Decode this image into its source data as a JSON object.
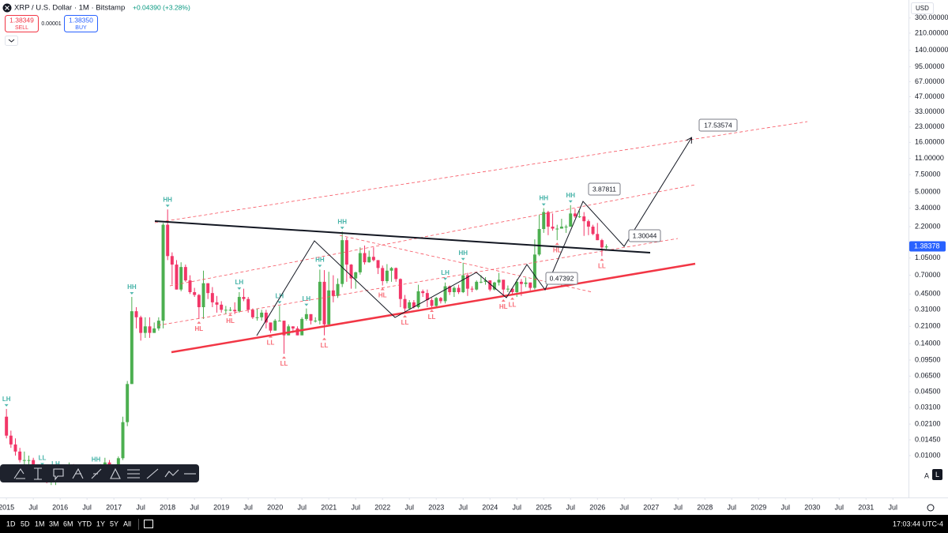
{
  "chart_data": {
    "type": "candlestick",
    "log": true,
    "grid": false,
    "up_color": "#4caf50",
    "down_color": "#f23668",
    "x": [
      "2015-01",
      "2015-02",
      "2015-03",
      "2015-04",
      "2015-05",
      "2015-06",
      "2015-07",
      "2015-08",
      "2015-09",
      "2015-10",
      "2015-11",
      "2015-12",
      "2016-01",
      "2016-02",
      "2016-03",
      "2016-04",
      "2016-05",
      "2016-06",
      "2016-07",
      "2016-08",
      "2016-09",
      "2016-10",
      "2016-11",
      "2016-12",
      "2017-01",
      "2017-02",
      "2017-03",
      "2017-04",
      "2017-05",
      "2017-06",
      "2017-07",
      "2017-08",
      "2017-09",
      "2017-10",
      "2017-11",
      "2017-12",
      "2018-01",
      "2018-02",
      "2018-03",
      "2018-04",
      "2018-05",
      "2018-06",
      "2018-07",
      "2018-08",
      "2018-09",
      "2018-10",
      "2018-11",
      "2018-12",
      "2019-01",
      "2019-02",
      "2019-03",
      "2019-04",
      "2019-05",
      "2019-06",
      "2019-07",
      "2019-08",
      "2019-09",
      "2019-10",
      "2019-11",
      "2019-12",
      "2020-01",
      "2020-02",
      "2020-03",
      "2020-04",
      "2020-05",
      "2020-06",
      "2020-07",
      "2020-08",
      "2020-09",
      "2020-10",
      "2020-11",
      "2020-12",
      "2021-01",
      "2021-02",
      "2021-03",
      "2021-04",
      "2021-05",
      "2021-06",
      "2021-07",
      "2021-08",
      "2021-09",
      "2021-10",
      "2021-11",
      "2021-12",
      "2022-01",
      "2022-02",
      "2022-03",
      "2022-04",
      "2022-05",
      "2022-06",
      "2022-07",
      "2022-08",
      "2022-09",
      "2022-10",
      "2022-11",
      "2022-12",
      "2023-01",
      "2023-02",
      "2023-03",
      "2023-04",
      "2023-05",
      "2023-06",
      "2023-07",
      "2023-08",
      "2023-09",
      "2023-10",
      "2023-11",
      "2023-12",
      "2024-01",
      "2024-02",
      "2024-03",
      "2024-04",
      "2024-05",
      "2024-06",
      "2024-07",
      "2024-08",
      "2024-09",
      "2024-10",
      "2024-11",
      "2024-12",
      "2025-01",
      "2025-02",
      "2025-03",
      "2025-04",
      "2025-05",
      "2025-06",
      "2025-07",
      "2025-08",
      "2025-09",
      "2025-10",
      "2025-11",
      "2025-12",
      "2026-01",
      "2026-02",
      "2026-03"
    ],
    "open": [
      0.025,
      0.016,
      0.013,
      0.011,
      0.009,
      0.009,
      0.009,
      0.0075,
      0.0065,
      0.0068,
      0.0055,
      0.0055,
      0.006,
      0.0065,
      0.0073,
      0.0079,
      0.0072,
      0.0065,
      0.0064,
      0.0065,
      0.0067,
      0.0068,
      0.0078,
      0.0085,
      0.0065,
      0.0065,
      0.0094,
      0.022,
      0.054,
      0.3,
      0.26,
      0.18,
      0.21,
      0.18,
      0.2,
      0.24,
      2.3,
      1.1,
      0.9,
      0.5,
      0.85,
      0.62,
      0.47,
      0.44,
      0.33,
      0.58,
      0.46,
      0.37,
      0.35,
      0.31,
      0.31,
      0.31,
      0.3,
      0.42,
      0.4,
      0.31,
      0.26,
      0.26,
      0.29,
      0.23,
      0.19,
      0.24,
      0.24,
      0.17,
      0.21,
      0.2,
      0.17,
      0.25,
      0.28,
      0.24,
      0.24,
      0.6,
      0.22,
      0.49,
      0.43,
      0.57,
      1.6,
      0.9,
      0.65,
      0.75,
      1.18,
      0.95,
      1.08,
      1.0,
      0.83,
      0.61,
      0.78,
      0.83,
      0.64,
      0.4,
      0.32,
      0.37,
      0.33,
      0.48,
      0.46,
      0.39,
      0.34,
      0.41,
      0.38,
      0.54,
      0.47,
      0.52,
      0.47,
      0.7,
      0.51,
      0.5,
      0.6,
      0.6,
      0.62,
      0.5,
      0.59,
      0.63,
      0.5,
      0.51,
      0.47,
      0.6,
      0.57,
      0.59,
      0.52,
      1.14,
      2.08,
      3.1,
      2.2,
      2.1,
      2.1,
      2.2,
      2.2,
      3.0,
      2.8,
      2.8,
      2.5,
      2.2,
      1.85,
      1.6,
      1.35
    ],
    "high": [
      0.03,
      0.018,
      0.015,
      0.012,
      0.011,
      0.01,
      0.0095,
      0.008,
      0.0075,
      0.0072,
      0.006,
      0.0065,
      0.0068,
      0.008,
      0.0085,
      0.0082,
      0.0075,
      0.007,
      0.007,
      0.007,
      0.0072,
      0.0082,
      0.0095,
      0.009,
      0.0075,
      0.0098,
      0.025,
      0.058,
      0.42,
      0.33,
      0.27,
      0.26,
      0.26,
      0.23,
      0.26,
      2.4,
      3.3,
      1.2,
      1.0,
      0.95,
      0.9,
      0.7,
      0.52,
      0.45,
      0.78,
      0.58,
      0.53,
      0.43,
      0.38,
      0.34,
      0.33,
      0.37,
      0.47,
      0.51,
      0.42,
      0.32,
      0.32,
      0.31,
      0.31,
      0.23,
      0.25,
      0.34,
      0.24,
      0.22,
      0.21,
      0.21,
      0.26,
      0.32,
      0.28,
      0.26,
      0.8,
      0.79,
      0.76,
      0.7,
      0.65,
      1.96,
      1.7,
      0.91,
      0.76,
      1.35,
      1.41,
      1.25,
      1.35,
      1.0,
      0.88,
      0.91,
      0.85,
      0.84,
      0.65,
      0.44,
      0.39,
      0.39,
      0.56,
      0.5,
      0.5,
      0.41,
      0.42,
      0.42,
      0.59,
      0.55,
      0.54,
      0.56,
      0.94,
      0.74,
      0.54,
      0.62,
      0.7,
      0.67,
      0.62,
      0.6,
      0.74,
      0.63,
      0.55,
      0.52,
      0.64,
      0.64,
      0.66,
      0.59,
      1.63,
      2.9,
      3.4,
      3.2,
      3.0,
      2.3,
      2.65,
      2.3,
      3.65,
      3.35,
      3.2,
      3.1,
      2.6,
      2.3,
      2.4,
      1.65,
      1.45
    ],
    "low": [
      0.015,
      0.012,
      0.01,
      0.0085,
      0.008,
      0.008,
      0.007,
      0.006,
      0.006,
      0.0052,
      0.005,
      0.005,
      0.0055,
      0.006,
      0.007,
      0.007,
      0.006,
      0.006,
      0.006,
      0.006,
      0.0063,
      0.0065,
      0.0075,
      0.006,
      0.006,
      0.006,
      0.009,
      0.02,
      0.054,
      0.2,
      0.15,
      0.16,
      0.16,
      0.18,
      0.19,
      0.2,
      1.0,
      0.56,
      0.5,
      0.48,
      0.6,
      0.45,
      0.42,
      0.25,
      0.25,
      0.4,
      0.33,
      0.29,
      0.29,
      0.28,
      0.3,
      0.28,
      0.29,
      0.38,
      0.29,
      0.25,
      0.24,
      0.24,
      0.2,
      0.18,
      0.19,
      0.24,
      0.11,
      0.17,
      0.18,
      0.17,
      0.17,
      0.24,
      0.22,
      0.23,
      0.22,
      0.17,
      0.21,
      0.37,
      0.41,
      0.53,
      0.6,
      0.51,
      0.51,
      0.71,
      0.9,
      0.94,
      0.97,
      0.72,
      0.55,
      0.58,
      0.6,
      0.6,
      0.33,
      0.29,
      0.31,
      0.32,
      0.32,
      0.42,
      0.33,
      0.33,
      0.33,
      0.36,
      0.36,
      0.44,
      0.42,
      0.45,
      0.46,
      0.43,
      0.47,
      0.49,
      0.58,
      0.56,
      0.48,
      0.49,
      0.55,
      0.42,
      0.47,
      0.44,
      0.42,
      0.43,
      0.53,
      0.49,
      0.5,
      1.1,
      1.9,
      1.8,
      2.0,
      1.6,
      2.1,
      1.9,
      2.2,
      2.7,
      2.7,
      1.77,
      1.8,
      1.8,
      1.6,
      1.1,
      1.3
    ],
    "close": [
      0.016,
      0.013,
      0.011,
      0.009,
      0.009,
      0.009,
      0.0075,
      0.0065,
      0.0068,
      0.0055,
      0.0055,
      0.006,
      0.0065,
      0.0073,
      0.0079,
      0.0072,
      0.0065,
      0.0064,
      0.0065,
      0.0067,
      0.0068,
      0.0078,
      0.0085,
      0.0065,
      0.0065,
      0.0094,
      0.022,
      0.054,
      0.3,
      0.26,
      0.18,
      0.21,
      0.18,
      0.2,
      0.24,
      2.3,
      1.1,
      0.9,
      0.5,
      0.85,
      0.62,
      0.47,
      0.44,
      0.33,
      0.58,
      0.46,
      0.37,
      0.35,
      0.31,
      0.31,
      0.31,
      0.3,
      0.42,
      0.4,
      0.31,
      0.26,
      0.26,
      0.29,
      0.23,
      0.19,
      0.24,
      0.24,
      0.17,
      0.21,
      0.2,
      0.17,
      0.25,
      0.28,
      0.24,
      0.24,
      0.6,
      0.22,
      0.49,
      0.43,
      0.57,
      1.6,
      0.9,
      0.65,
      0.75,
      1.18,
      0.95,
      1.08,
      1.0,
      0.83,
      0.61,
      0.78,
      0.83,
      0.64,
      0.4,
      0.32,
      0.37,
      0.33,
      0.48,
      0.46,
      0.39,
      0.34,
      0.41,
      0.38,
      0.54,
      0.47,
      0.52,
      0.47,
      0.7,
      0.51,
      0.5,
      0.6,
      0.6,
      0.62,
      0.5,
      0.59,
      0.63,
      0.5,
      0.51,
      0.47,
      0.6,
      0.57,
      0.59,
      0.52,
      1.14,
      2.08,
      3.1,
      2.2,
      2.1,
      2.1,
      2.2,
      2.2,
      3.0,
      2.8,
      2.8,
      2.5,
      2.2,
      1.85,
      1.6,
      1.35,
      1.38
    ],
    "last_price": 1.38378,
    "last_price_color": "#2962ff",
    "annotations": [
      17.53574,
      3.87811,
      1.30044,
      0.47392
    ],
    "pivot_colors": {
      "high": "#26a69a",
      "low": "#f7525f"
    },
    "pivots": [
      {
        "label": "LH",
        "x": "2015-01",
        "side": "high"
      },
      {
        "label": "LL",
        "x": "2015-09",
        "side": "high"
      },
      {
        "label": "LH",
        "x": "2015-12",
        "side": "high"
      },
      {
        "label": "HH",
        "x": "2016-09",
        "side": "high"
      },
      {
        "label": "HH",
        "x": "2017-05",
        "side": "high"
      },
      {
        "label": "HH",
        "x": "2018-01",
        "side": "high"
      },
      {
        "label": "HL",
        "x": "2018-08",
        "side": "low"
      },
      {
        "label": "HL",
        "x": "2019-03",
        "side": "low"
      },
      {
        "label": "LH",
        "x": "2019-05",
        "side": "high"
      },
      {
        "label": "LL",
        "x": "2019-12",
        "side": "low"
      },
      {
        "label": "LH",
        "x": "2020-02",
        "side": "high"
      },
      {
        "label": "LL",
        "x": "2020-03",
        "side": "low"
      },
      {
        "label": "LH",
        "x": "2020-08",
        "side": "high"
      },
      {
        "label": "HH",
        "x": "2020-11",
        "side": "high"
      },
      {
        "label": "LL",
        "x": "2020-12",
        "side": "low"
      },
      {
        "label": "HH",
        "x": "2021-04",
        "side": "high"
      },
      {
        "label": "HL",
        "x": "2022-01",
        "side": "low"
      },
      {
        "label": "LL",
        "x": "2022-06",
        "side": "low"
      },
      {
        "label": "LL",
        "x": "2022-12",
        "side": "low"
      },
      {
        "label": "LH",
        "x": "2023-03",
        "side": "high"
      },
      {
        "label": "HH",
        "x": "2023-07",
        "side": "high"
      },
      {
        "label": "HL",
        "x": "2024-04",
        "side": "low"
      },
      {
        "label": "LL",
        "x": "2024-06",
        "side": "low"
      },
      {
        "label": "HH",
        "x": "2025-01",
        "side": "high"
      },
      {
        "label": "HL",
        "x": "2025-04",
        "side": "low"
      },
      {
        "label": "HH",
        "x": "2025-07",
        "side": "high"
      },
      {
        "label": "LL",
        "x": "2026-02",
        "side": "low"
      }
    ],
    "xlim": [
      2014.88,
      2031.79
    ],
    "xticks": [
      2015,
      {
        "value": 2015.5,
        "label": "Jul"
      },
      2016,
      {
        "value": 2016.5,
        "label": "Jul"
      },
      2017,
      {
        "value": 2017.5,
        "label": "Jul"
      },
      2018,
      {
        "value": 2018.5,
        "label": "Jul"
      },
      2019,
      {
        "value": 2019.5,
        "label": "Jul"
      },
      2020,
      {
        "value": 2020.5,
        "label": "Jul"
      },
      2021,
      {
        "value": 2021.5,
        "label": "Jul"
      },
      2022,
      {
        "value": 2022.5,
        "label": "Jul"
      },
      2023,
      {
        "value": 2023.5,
        "label": "Jul"
      },
      2024,
      {
        "value": 2024.5,
        "label": "Jul"
      },
      2025,
      {
        "value": 2025.5,
        "label": "Jul"
      },
      2026,
      {
        "value": 2026.5,
        "label": "Jul"
      },
      2027,
      {
        "value": 2027.5,
        "label": "Jul"
      },
      2028,
      {
        "value": 2028.5,
        "label": "Jul"
      },
      2029,
      {
        "value": 2029.5,
        "label": "Jul"
      },
      2030,
      {
        "value": 2030.5,
        "label": "Jul"
      },
      2031,
      {
        "value": 2031.5,
        "label": "Jul"
      }
    ],
    "ylim": [
      0.00715,
      316
    ],
    "yticks": [
      {
        "value": 300,
        "label": "300.00000"
      },
      {
        "value": 210,
        "label": "210.00000"
      },
      {
        "value": 140,
        "label": "140.00000"
      },
      {
        "value": 95,
        "label": "95.00000"
      },
      {
        "value": 67,
        "label": "67.00000"
      },
      {
        "value": 47,
        "label": "47.00000"
      },
      {
        "value": 33,
        "label": "33.00000"
      },
      {
        "value": 23,
        "label": "23.00000"
      },
      {
        "value": 16,
        "label": "16.00000"
      },
      {
        "value": 11,
        "label": "11.00000"
      },
      {
        "value": 7.5,
        "label": "7.50000"
      },
      {
        "value": 5,
        "label": "5.00000"
      },
      {
        "value": 3.4,
        "label": "3.40000"
      },
      {
        "value": 2.2,
        "label": "2.20000"
      },
      {
        "value": 1.05,
        "label": "1.05000"
      },
      {
        "value": 0.7,
        "label": "0.70000"
      },
      {
        "value": 0.45,
        "label": "0.45000"
      },
      {
        "value": 0.31,
        "label": "0.31000"
      },
      {
        "value": 0.21,
        "label": "0.21000"
      },
      {
        "value": 0.14,
        "label": "0.14000"
      },
      {
        "value": 0.095,
        "label": "0.09500"
      },
      {
        "value": 0.065,
        "label": "0.06500"
      },
      {
        "value": 0.045,
        "label": "0.04500"
      },
      {
        "value": 0.031,
        "label": "0.03100"
      },
      {
        "value": 0.021,
        "label": "0.02100"
      },
      {
        "value": 0.0145,
        "label": "0.01450"
      },
      {
        "value": 0.01,
        "label": "0.01000"
      }
    ]
  },
  "ui": {
    "title": "XRP / U.S. Dollar · 1M · Bitstamp",
    "change": "+0.04390 (+3.28%)",
    "sell_price": "1.38349",
    "sell_label": "SELL",
    "spread": "0.00001",
    "buy_price": "1.38350",
    "buy_label": "BUY",
    "currency": "USD",
    "buttons": [
      "A",
      "L"
    ],
    "ranges": [
      "1D",
      "5D",
      "1M",
      "3M",
      "6M",
      "YTD",
      "1Y",
      "5Y",
      "All"
    ],
    "time": "17:03:44 UTC-4"
  }
}
